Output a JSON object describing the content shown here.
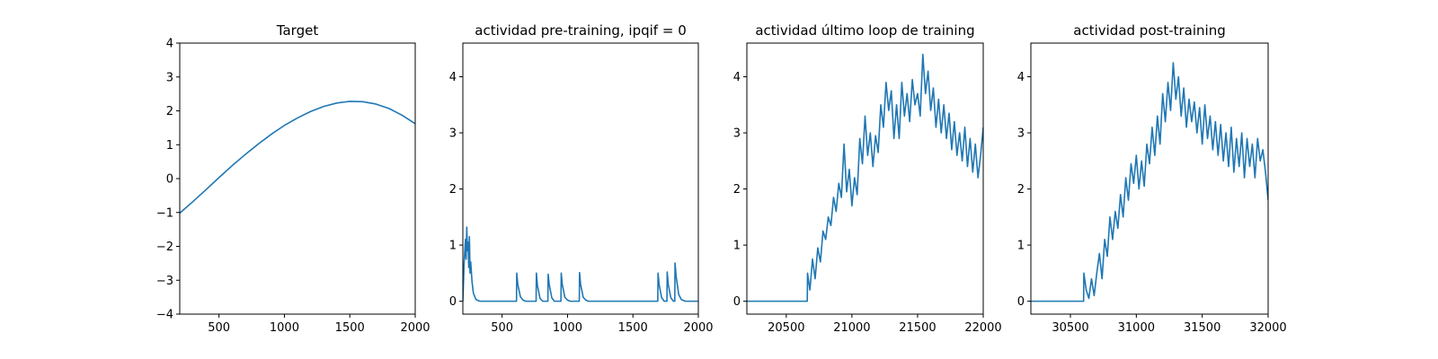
{
  "chart_data": [
    {
      "type": "line",
      "title": "Target",
      "xlabel": "",
      "ylabel": "",
      "xlim": [
        200,
        2000
      ],
      "ylim": [
        -4,
        4
      ],
      "xticks": [
        500,
        1000,
        1500,
        2000
      ],
      "xtick_labels": [
        "500",
        "1000",
        "1500",
        "2000"
      ],
      "yticks": [
        -4,
        -3,
        -2,
        -1,
        0,
        1,
        2,
        3,
        4
      ],
      "ytick_labels": [
        "−4",
        "−3",
        "−2",
        "−1",
        "0",
        "1",
        "2",
        "3",
        "4"
      ],
      "color": "#1f77b4",
      "series": [
        {
          "x": [
            200,
            300,
            400,
            500,
            600,
            700,
            800,
            900,
            1000,
            1100,
            1200,
            1300,
            1400,
            1500,
            1600,
            1700,
            1800,
            1900,
            2000
          ],
          "values": [
            -1.02,
            -0.68,
            -0.33,
            0.03,
            0.38,
            0.71,
            1.02,
            1.31,
            1.57,
            1.79,
            1.98,
            2.13,
            2.23,
            2.28,
            2.27,
            2.2,
            2.07,
            1.87,
            1.62
          ]
        }
      ]
    },
    {
      "type": "line",
      "title": "actividad pre-training, ipqif = 0",
      "xlabel": "",
      "ylabel": "",
      "xlim": [
        200,
        2000
      ],
      "ylim": [
        -0.23,
        4.6
      ],
      "xticks": [
        500,
        1000,
        1500,
        2000
      ],
      "xtick_labels": [
        "500",
        "1000",
        "1500",
        "2000"
      ],
      "yticks": [
        0,
        1,
        2,
        3,
        4
      ],
      "ytick_labels": [
        "0",
        "1",
        "2",
        "3",
        "4"
      ],
      "color": "#1f77b4",
      "series": [
        {
          "x": [
            200,
            210,
            220,
            225,
            230,
            235,
            240,
            245,
            250,
            255,
            260,
            270,
            280,
            300,
            330,
            600,
            610,
            612,
            620,
            640,
            660,
            680,
            700,
            760,
            762,
            770,
            790,
            810,
            830,
            850,
            852,
            860,
            880,
            900,
            950,
            952,
            960,
            980,
            1000,
            1020,
            1090,
            1092,
            1100,
            1120,
            1140,
            1160,
            1180,
            1690,
            1692,
            1700,
            1720,
            1740,
            1760,
            1762,
            1770,
            1790,
            1810,
            1820,
            1822,
            1830,
            1850,
            1870,
            1900,
            1950,
            2000
          ],
          "values": [
            0.0,
            0.7,
            1.1,
            0.75,
            1.32,
            0.9,
            1.05,
            0.6,
            1.15,
            0.5,
            0.7,
            0.35,
            0.15,
            0.03,
            0.0,
            0.0,
            0.0,
            0.5,
            0.3,
            0.08,
            0.02,
            0.0,
            0.0,
            0.0,
            0.5,
            0.28,
            0.05,
            0.0,
            0.0,
            0.0,
            0.48,
            0.3,
            0.06,
            0.0,
            0.0,
            0.5,
            0.3,
            0.07,
            0.02,
            0.0,
            0.0,
            0.51,
            0.3,
            0.07,
            0.02,
            0.0,
            0.0,
            0.0,
            0.5,
            0.3,
            0.06,
            0.0,
            0.0,
            0.52,
            0.3,
            0.06,
            0.0,
            0.0,
            0.68,
            0.45,
            0.12,
            0.03,
            0.0,
            0.0,
            0.0
          ]
        }
      ]
    },
    {
      "type": "line",
      "title": "actividad último loop de training",
      "xlabel": "",
      "ylabel": "",
      "xlim": [
        20200,
        22000
      ],
      "ylim": [
        -0.23,
        4.6
      ],
      "xticks": [
        20500,
        21000,
        21500,
        22000
      ],
      "xtick_labels": [
        "20500",
        "21000",
        "21500",
        "22000"
      ],
      "yticks": [
        0,
        1,
        2,
        3,
        4
      ],
      "ytick_labels": [
        "0",
        "1",
        "2",
        "3",
        "4"
      ],
      "color": "#1f77b4",
      "series": [
        {
          "x": [
            20200,
            20300,
            20400,
            20500,
            20600,
            20660,
            20662,
            20680,
            20700,
            20720,
            20740,
            20760,
            20780,
            20800,
            20820,
            20840,
            20860,
            20880,
            20900,
            20920,
            20940,
            20960,
            20980,
            21000,
            21020,
            21040,
            21060,
            21080,
            21100,
            21120,
            21140,
            21160,
            21180,
            21200,
            21220,
            21240,
            21260,
            21280,
            21300,
            21320,
            21340,
            21360,
            21380,
            21400,
            21420,
            21440,
            21460,
            21480,
            21500,
            21520,
            21540,
            21560,
            21580,
            21600,
            21620,
            21640,
            21660,
            21680,
            21700,
            21720,
            21740,
            21760,
            21780,
            21800,
            21820,
            21840,
            21860,
            21880,
            21900,
            21920,
            21940,
            21960,
            21980,
            22000
          ],
          "values": [
            0,
            0,
            0,
            0,
            0,
            0,
            0.5,
            0.2,
            0.75,
            0.4,
            0.95,
            0.7,
            1.25,
            1.1,
            1.5,
            1.35,
            1.85,
            1.6,
            2.1,
            1.85,
            2.8,
            1.95,
            2.35,
            1.7,
            2.2,
            1.9,
            2.9,
            2.45,
            3.3,
            2.6,
            3.0,
            2.4,
            2.95,
            2.65,
            3.5,
            3.1,
            3.9,
            3.4,
            3.75,
            2.9,
            3.5,
            2.9,
            3.9,
            3.3,
            3.7,
            3.2,
            3.95,
            3.5,
            3.7,
            3.3,
            4.4,
            3.7,
            4.1,
            3.4,
            3.8,
            3.1,
            3.6,
            3.0,
            3.5,
            2.9,
            3.35,
            2.7,
            3.2,
            2.6,
            3.0,
            2.5,
            3.1,
            2.4,
            2.9,
            2.3,
            2.8,
            2.2,
            2.6,
            3.1
          ]
        }
      ]
    },
    {
      "type": "line",
      "title": "actividad post-training",
      "xlabel": "",
      "ylabel": "",
      "xlim": [
        30200,
        32000
      ],
      "ylim": [
        -0.23,
        4.6
      ],
      "xticks": [
        30500,
        31000,
        31500,
        32000
      ],
      "xtick_labels": [
        "30500",
        "31000",
        "31500",
        "32000"
      ],
      "yticks": [
        0,
        1,
        2,
        3,
        4
      ],
      "ytick_labels": [
        "0",
        "1",
        "2",
        "3",
        "4"
      ],
      "color": "#1f77b4",
      "series": [
        {
          "x": [
            30200,
            30300,
            30400,
            30500,
            30600,
            30602,
            30620,
            30640,
            30660,
            30680,
            30700,
            30720,
            30740,
            30760,
            30780,
            30800,
            30820,
            30840,
            30860,
            30880,
            30900,
            30920,
            30940,
            30960,
            30980,
            31000,
            31020,
            31040,
            31060,
            31080,
            31100,
            31120,
            31140,
            31160,
            31180,
            31200,
            31220,
            31240,
            31260,
            31280,
            31300,
            31320,
            31340,
            31360,
            31380,
            31400,
            31420,
            31440,
            31460,
            31480,
            31500,
            31520,
            31540,
            31560,
            31580,
            31600,
            31620,
            31640,
            31660,
            31680,
            31700,
            31720,
            31740,
            31760,
            31780,
            31800,
            31820,
            31840,
            31860,
            31880,
            31900,
            31920,
            31940,
            31960,
            31980,
            32000
          ],
          "values": [
            0,
            0,
            0,
            0,
            0,
            0.5,
            0.2,
            0.05,
            0.4,
            0.1,
            0.5,
            0.85,
            0.4,
            1.1,
            0.8,
            1.5,
            1.1,
            1.6,
            1.3,
            1.9,
            1.5,
            2.2,
            1.8,
            2.45,
            2.1,
            2.6,
            2.0,
            2.5,
            2.05,
            2.8,
            2.45,
            3.1,
            2.6,
            3.3,
            2.8,
            3.7,
            3.2,
            3.9,
            3.4,
            4.25,
            3.6,
            4.0,
            3.3,
            3.8,
            3.1,
            3.6,
            3.2,
            3.55,
            3.0,
            3.45,
            2.8,
            3.5,
            2.9,
            3.3,
            2.7,
            3.2,
            2.6,
            3.15,
            2.5,
            3.0,
            2.4,
            3.1,
            2.3,
            2.9,
            2.4,
            3.0,
            2.2,
            2.9,
            2.4,
            2.8,
            2.2,
            2.9,
            2.5,
            2.7,
            2.3,
            1.8
          ]
        }
      ]
    }
  ]
}
